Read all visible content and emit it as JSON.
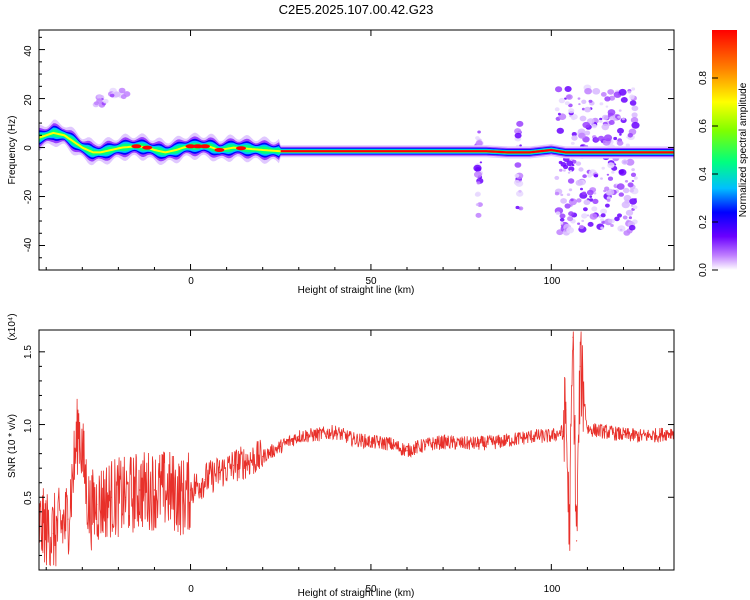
{
  "title": "C2E5.2025.107.00.42.G23",
  "chart_data": [
    {
      "type": "heatmap",
      "xlabel": "Height of straight line (km)",
      "ylabel": "Frequency (Hz)",
      "xlim": [
        -42,
        134
      ],
      "ylim": [
        -50,
        48
      ],
      "xticks": [
        "0",
        "50",
        "100"
      ],
      "yticks": [
        "40",
        "20",
        "0",
        "-20",
        "-40"
      ],
      "colorbar": {
        "label": "Normalized spectral amplitude",
        "range": [
          0.0,
          1.0
        ],
        "ticks": [
          "0.0",
          "0.2",
          "0.4",
          "0.6",
          "0.8"
        ],
        "colors": [
          "#ffffff",
          "#c080ff",
          "#6a00ff",
          "#0000ff",
          "#00bfff",
          "#00ff7f",
          "#7fff00",
          "#ffff00",
          "#ff8000",
          "#ff0000"
        ]
      },
      "ridge": {
        "x": [
          -42,
          -38,
          -35,
          -32,
          -30,
          -27,
          -25,
          -22,
          -19,
          -15,
          -12,
          -10,
          -7,
          -4,
          -2,
          0,
          5,
          8,
          12,
          16,
          20,
          25,
          40,
          60,
          78,
          82,
          88,
          94,
          100,
          104,
          110,
          116,
          122,
          134
        ],
        "freq": [
          4,
          6,
          5,
          2,
          0,
          -2,
          -2,
          -1,
          0,
          0.5,
          0,
          -1,
          -2,
          -1,
          0,
          0.5,
          0.5,
          -1,
          0,
          -0.5,
          -1,
          -1.5,
          -1.5,
          -1.5,
          -1.5,
          -1.5,
          -2,
          -2,
          -1,
          -2,
          -2,
          -2,
          -2,
          -2
        ]
      },
      "scatter_bursts": [
        {
          "x": -20,
          "freq": 22
        },
        {
          "x": -25,
          "freq": 19
        },
        {
          "x": 80,
          "freq": -10
        },
        {
          "x": 91,
          "freq": -8
        },
        {
          "x": 104,
          "freq": -5
        },
        {
          "x": 110,
          "freq": -5
        },
        {
          "x": 116,
          "freq": -5
        },
        {
          "x": 121,
          "freq": -5
        }
      ]
    },
    {
      "type": "line",
      "xlabel": "Height of straight line (km)",
      "ylabel": "SNR (10 * v/v)",
      "yscale_label": "(x10⁴)",
      "xlim": [
        -42,
        134
      ],
      "ylim": [
        0.0,
        1.65
      ],
      "xticks": [
        "0",
        "50",
        "100"
      ],
      "yticks": [
        "1.5",
        "1.0",
        "0.5"
      ],
      "series": [
        {
          "color": "#e8302a",
          "x": [
            -42,
            -38,
            -34,
            -31,
            -28,
            -26,
            -22,
            -18,
            -14,
            -10,
            -6,
            -2,
            0,
            4,
            8,
            12,
            16,
            20,
            25,
            30,
            35,
            40,
            45,
            50,
            55,
            60,
            65,
            70,
            75,
            80,
            85,
            90,
            95,
            100,
            103,
            104,
            105,
            106,
            107,
            108,
            110,
            115,
            120,
            125,
            130,
            134
          ],
          "y": [
            0.3,
            0.25,
            0.35,
            1.0,
            0.4,
            0.45,
            0.5,
            0.5,
            0.55,
            0.55,
            0.55,
            0.5,
            0.55,
            0.62,
            0.67,
            0.72,
            0.75,
            0.78,
            0.85,
            0.92,
            0.93,
            0.95,
            0.9,
            0.88,
            0.87,
            0.82,
            0.86,
            0.88,
            0.87,
            0.87,
            0.88,
            0.9,
            0.92,
            0.92,
            0.95,
            1.1,
            0.25,
            1.6,
            0.2,
            1.4,
            0.97,
            0.95,
            0.93,
            0.92,
            0.93,
            0.95
          ]
        }
      ]
    }
  ]
}
